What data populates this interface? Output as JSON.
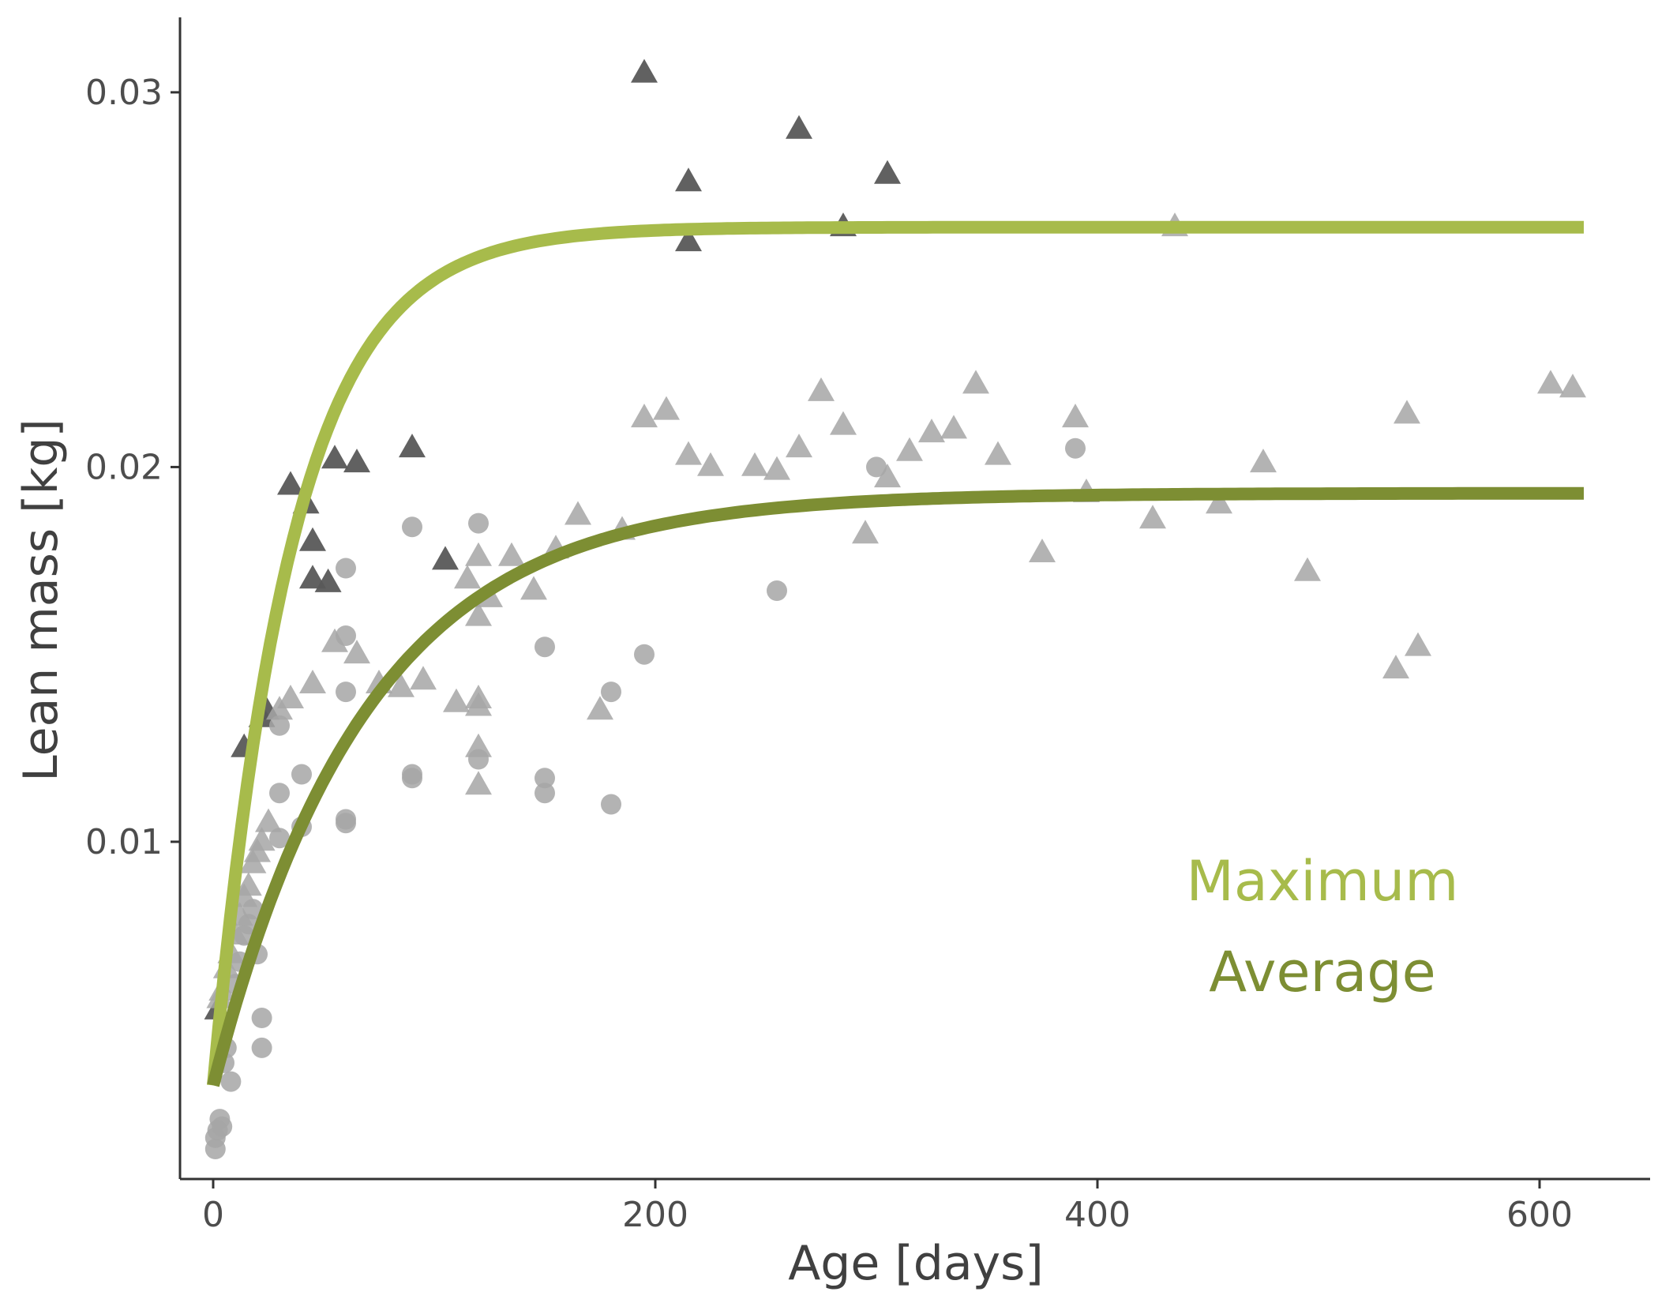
{
  "colors": {
    "maximum": "#a7bb4b",
    "average": "#7d8e33",
    "dark_points": "#595959",
    "light_points": "#a6a6a6",
    "axis": "#333333",
    "text": "#4d4d4d"
  },
  "chart_data": {
    "type": "scatter",
    "xlabel": "Age [days]",
    "ylabel": "Lean mass [kg]",
    "xlim": [
      -15,
      650
    ],
    "ylim": [
      0.001,
      0.032
    ],
    "x_ticks": [
      {
        "value": 0,
        "label": "0"
      },
      {
        "value": 200,
        "label": "200"
      },
      {
        "value": 400,
        "label": "400"
      },
      {
        "value": 600,
        "label": "600"
      }
    ],
    "y_ticks": [
      {
        "value": 0.01,
        "label": "0.01"
      },
      {
        "value": 0.02,
        "label": "0.02"
      },
      {
        "value": 0.03,
        "label": "0.03"
      }
    ],
    "grid": false,
    "lines": [
      {
        "name": "Maximum",
        "model": "asymptotic_exponential",
        "asymptote": 0.0264,
        "initial": 0.0035,
        "rate": 0.028,
        "x_range": [
          0,
          620
        ],
        "color": "maximum",
        "label_position": "lower-right"
      },
      {
        "name": "Average",
        "model": "asymptotic_exponential",
        "asymptote": 0.0193,
        "initial": 0.0035,
        "rate": 0.0145,
        "x_range": [
          0,
          620
        ],
        "color": "average",
        "label_position": "lower-right"
      }
    ],
    "series": [
      {
        "shape": "triangle",
        "shade": "dark_points",
        "points": [
          [
            195,
            0.0305
          ],
          [
            265,
            0.029
          ],
          [
            215,
            0.0276
          ],
          [
            305,
            0.0278
          ],
          [
            215,
            0.026
          ],
          [
            285,
            0.0264
          ],
          [
            90,
            0.0205
          ],
          [
            55,
            0.0202
          ],
          [
            65,
            0.0201
          ],
          [
            35,
            0.0195
          ],
          [
            42,
            0.019
          ],
          [
            45,
            0.018
          ],
          [
            52,
            0.0169
          ],
          [
            105,
            0.0175
          ],
          [
            45,
            0.017
          ],
          [
            14,
            0.0125
          ],
          [
            22,
            0.0133
          ],
          [
            24,
            0.0135
          ],
          [
            2,
            0.0055
          ]
        ]
      },
      {
        "shape": "triangle",
        "shade": "light_points",
        "points": [
          [
            195,
            0.0213
          ],
          [
            205,
            0.0215
          ],
          [
            215,
            0.0203
          ],
          [
            225,
            0.02
          ],
          [
            245,
            0.02
          ],
          [
            255,
            0.0199
          ],
          [
            265,
            0.0205
          ],
          [
            275,
            0.022
          ],
          [
            285,
            0.0211
          ],
          [
            295,
            0.0182
          ],
          [
            305,
            0.0197
          ],
          [
            315,
            0.0204
          ],
          [
            325,
            0.0209
          ],
          [
            335,
            0.021
          ],
          [
            345,
            0.0222
          ],
          [
            355,
            0.0203
          ],
          [
            375,
            0.0177
          ],
          [
            390,
            0.0213
          ],
          [
            395,
            0.0193
          ],
          [
            425,
            0.0186
          ],
          [
            435,
            0.0264
          ],
          [
            455,
            0.019
          ],
          [
            475,
            0.0201
          ],
          [
            495,
            0.0172
          ],
          [
            535,
            0.0146
          ],
          [
            540,
            0.0214
          ],
          [
            545,
            0.0152
          ],
          [
            605,
            0.0222
          ],
          [
            615,
            0.0221
          ],
          [
            165,
            0.0187
          ],
          [
            185,
            0.0183
          ],
          [
            155,
            0.0178
          ],
          [
            145,
            0.0167
          ],
          [
            135,
            0.0176
          ],
          [
            125,
            0.0165
          ],
          [
            120,
            0.0176
          ],
          [
            115,
            0.017
          ],
          [
            120,
            0.016
          ],
          [
            120,
            0.0136
          ],
          [
            120,
            0.0138
          ],
          [
            120,
            0.0125
          ],
          [
            120,
            0.0115
          ],
          [
            110,
            0.0137
          ],
          [
            95,
            0.0143
          ],
          [
            85,
            0.0141
          ],
          [
            75,
            0.0142
          ],
          [
            65,
            0.015
          ],
          [
            55,
            0.0153
          ],
          [
            45,
            0.0142
          ],
          [
            35,
            0.0138
          ],
          [
            30,
            0.0135
          ],
          [
            25,
            0.0105
          ],
          [
            22,
            0.01
          ],
          [
            20,
            0.0097
          ],
          [
            18,
            0.0094
          ],
          [
            16,
            0.0088
          ],
          [
            14,
            0.0085
          ],
          [
            12,
            0.008
          ],
          [
            10,
            0.0075
          ],
          [
            8,
            0.007
          ],
          [
            6,
            0.0066
          ],
          [
            4,
            0.006
          ],
          [
            3,
            0.0058
          ],
          [
            175,
            0.0135
          ]
        ]
      },
      {
        "shape": "circle",
        "shade": "light_points",
        "points": [
          [
            390,
            0.0205
          ],
          [
            300,
            0.02
          ],
          [
            255,
            0.0167
          ],
          [
            195,
            0.015
          ],
          [
            180,
            0.014
          ],
          [
            180,
            0.011
          ],
          [
            150,
            0.0152
          ],
          [
            150,
            0.0117
          ],
          [
            150,
            0.0113
          ],
          [
            120,
            0.0185
          ],
          [
            120,
            0.0122
          ],
          [
            90,
            0.0184
          ],
          [
            90,
            0.0118
          ],
          [
            90,
            0.0117
          ],
          [
            60,
            0.0173
          ],
          [
            60,
            0.0155
          ],
          [
            60,
            0.014
          ],
          [
            60,
            0.0106
          ],
          [
            60,
            0.0105
          ],
          [
            40,
            0.0118
          ],
          [
            40,
            0.0104
          ],
          [
            30,
            0.0113
          ],
          [
            30,
            0.0101
          ],
          [
            30,
            0.0131
          ],
          [
            22,
            0.0053
          ],
          [
            22,
            0.0045
          ],
          [
            20,
            0.007
          ],
          [
            18,
            0.0082
          ],
          [
            16,
            0.0078
          ],
          [
            14,
            0.0075
          ],
          [
            12,
            0.0068
          ],
          [
            10,
            0.0062
          ],
          [
            8,
            0.0036
          ],
          [
            6,
            0.0045
          ],
          [
            5,
            0.0041
          ],
          [
            3,
            0.0026
          ],
          [
            2,
            0.0023
          ],
          [
            1,
            0.0021
          ],
          [
            1,
            0.0018
          ],
          [
            4,
            0.0024
          ]
        ]
      }
    ]
  }
}
